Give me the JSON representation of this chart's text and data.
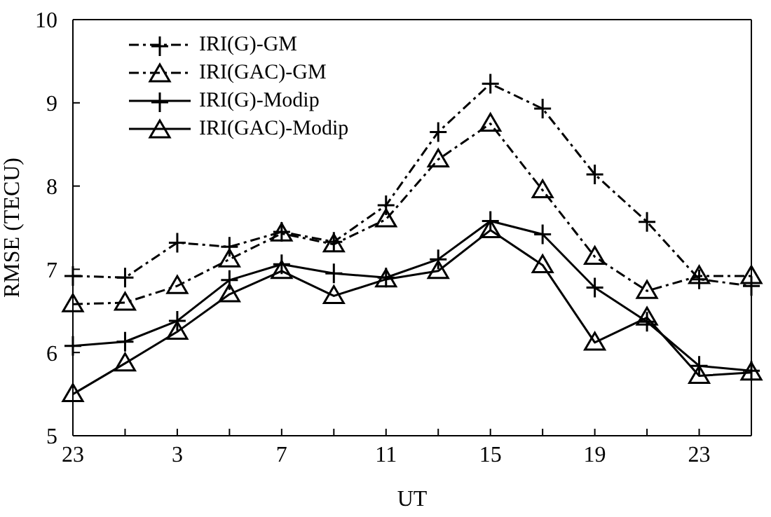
{
  "chart_data": {
    "type": "line",
    "xlabel": "UT",
    "ylabel": "RMSE (TECU)",
    "categories": [
      "23",
      null,
      "3",
      null,
      "7",
      null,
      "11",
      null,
      "15",
      null,
      "19",
      null,
      "23",
      null
    ],
    "ylim": [
      5,
      10
    ],
    "yticks": [
      5,
      6,
      7,
      8,
      9,
      10
    ],
    "grid": false,
    "legend": "top left",
    "series": [
      {
        "name": "IRI(G)-GM",
        "color": "#000000",
        "marker": "cross",
        "line_style": "dashed",
        "values": [
          6.92,
          6.9,
          7.32,
          7.27,
          7.45,
          7.33,
          7.77,
          8.65,
          9.23,
          8.93,
          8.14,
          7.57,
          6.88,
          6.8
        ]
      },
      {
        "name": "IRI(GAC)-GM",
        "color": "#000000",
        "marker": "triangle",
        "line_style": "dashed",
        "values": [
          6.58,
          6.6,
          6.8,
          7.12,
          7.43,
          7.3,
          7.6,
          8.32,
          8.75,
          7.95,
          7.15,
          6.74,
          6.92,
          6.92
        ]
      },
      {
        "name": "IRI(G)-Modip",
        "color": "#000000",
        "marker": "cross",
        "line_style": "solid",
        "values": [
          6.08,
          6.13,
          6.38,
          6.87,
          7.06,
          6.95,
          6.9,
          7.12,
          7.58,
          7.42,
          6.78,
          6.37,
          5.84,
          5.78
        ]
      },
      {
        "name": "IRI(GAC)-Modip",
        "color": "#000000",
        "marker": "triangle",
        "line_style": "solid",
        "values": [
          5.5,
          5.87,
          6.25,
          6.7,
          6.98,
          6.68,
          6.88,
          6.98,
          7.47,
          7.05,
          6.12,
          6.42,
          5.72,
          5.76
        ]
      }
    ]
  }
}
